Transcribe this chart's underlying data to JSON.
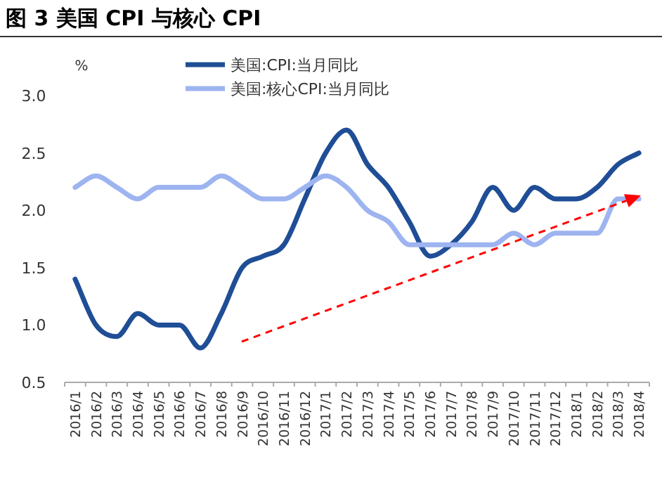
{
  "chart_data": {
    "type": "line",
    "title": "图 3 美国 CPI 与核心 CPI",
    "ylabel": "%",
    "categories": [
      "2016/1",
      "2016/2",
      "2016/3",
      "2016/4",
      "2016/5",
      "2016/6",
      "2016/7",
      "2016/8",
      "2016/9",
      "2016/10",
      "2016/11",
      "2016/12",
      "2017/1",
      "2017/2",
      "2017/3",
      "2017/4",
      "2017/5",
      "2017/6",
      "2017/7",
      "2017/8",
      "2017/9",
      "2017/10",
      "2017/11",
      "2017/12",
      "2018/1",
      "2018/2",
      "2018/3",
      "2018/4"
    ],
    "series": [
      {
        "name": "美国:CPI:当月同比",
        "color": "#1f4e96",
        "values": [
          1.4,
          1.0,
          0.9,
          1.1,
          1.0,
          1.0,
          0.8,
          1.1,
          1.5,
          1.6,
          1.7,
          2.1,
          2.5,
          2.7,
          2.4,
          2.2,
          1.9,
          1.6,
          1.7,
          1.9,
          2.2,
          2.0,
          2.2,
          2.1,
          2.1,
          2.2,
          2.4,
          2.5
        ]
      },
      {
        "name": "美国:核心CPI:当月同比",
        "color": "#9db4f0",
        "values": [
          2.2,
          2.3,
          2.2,
          2.1,
          2.2,
          2.2,
          2.2,
          2.3,
          2.2,
          2.1,
          2.1,
          2.2,
          2.3,
          2.2,
          2.0,
          1.9,
          1.7,
          1.7,
          1.7,
          1.7,
          1.7,
          1.8,
          1.7,
          1.8,
          1.8,
          1.8,
          2.1,
          2.1
        ]
      }
    ],
    "ylim": [
      0.5,
      3.0
    ],
    "yticks": [
      0.5,
      {
        "value": 1,
        "label": "1.0"
      },
      1.5,
      {
        "value": 2,
        "label": "2.0"
      },
      2.5,
      {
        "value": 3,
        "label": "3.0"
      }
    ],
    "legend": "top",
    "grid": false,
    "marker": "none"
  }
}
